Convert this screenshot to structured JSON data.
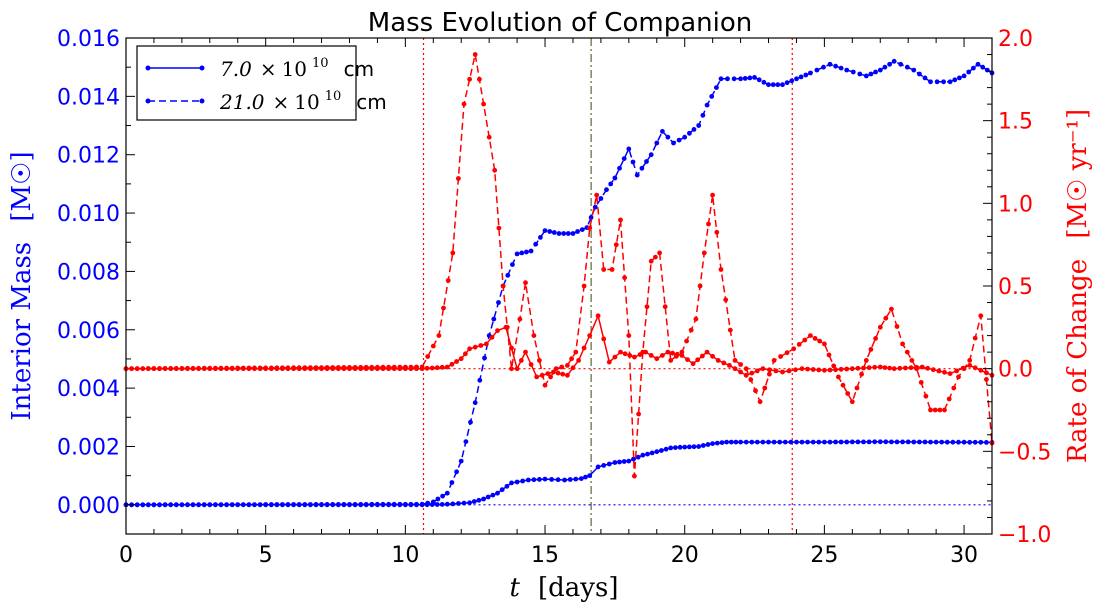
{
  "chart_data": {
    "type": "line",
    "title": "Mass Evolution of Companion",
    "xlabel_var": "t",
    "xlabel_unit": "[days]",
    "ylabel_left": "Interior Mass",
    "ylabel_left_unit": "[M☉]",
    "ylabel_right": "Rate of Change",
    "ylabel_right_unit": "[M☉ yr⁻¹]",
    "xlim": [
      0,
      31
    ],
    "ylim_left": [
      -0.001,
      0.016
    ],
    "ylim_right": [
      -1.0,
      2.0
    ],
    "xticks": [
      "0",
      "5",
      "10",
      "15",
      "20",
      "25",
      "30"
    ],
    "yticks_left": [
      "0.000",
      "0.002",
      "0.004",
      "0.006",
      "0.008",
      "0.010",
      "0.012",
      "0.014",
      "0.016"
    ],
    "yticks_right": [
      "−1.0",
      "−0.5",
      "0.0",
      "0.5",
      "1.0",
      "1.5",
      "2.0"
    ],
    "legend_position": "top-left",
    "legend": [
      {
        "num": "7.0",
        "exp": "10",
        "unit": "cm",
        "style": "solid"
      },
      {
        "num": "21.0",
        "exp": "10",
        "unit": "cm",
        "style": "dashed"
      }
    ],
    "vertical_lines": [
      {
        "x": 10.65,
        "color": "#ff0000",
        "style": "dotted"
      },
      {
        "x": 16.65,
        "color": "#556b2f",
        "style": "dashdot"
      },
      {
        "x": 23.85,
        "color": "#ff0000",
        "style": "dotted"
      }
    ],
    "horizontal_lines": [
      {
        "axis": "left",
        "y": 0.0,
        "color": "#0000ff",
        "style": "dotted",
        "x_start": 10.65
      },
      {
        "axis": "right",
        "y": 0.0,
        "color": "#ff0000",
        "style": "dotted",
        "x_start": 10.65
      }
    ],
    "colors": {
      "mass": "#0000ff",
      "rate": "#ff0000"
    },
    "series": [
      {
        "name": "7.0 ×10^10 cm",
        "axis": "left",
        "color": "#0000ff",
        "style": "solid",
        "points": [
          [
            0,
            0
          ],
          [
            10.6,
            0
          ],
          [
            11.5,
            2e-05
          ],
          [
            12.3,
            7e-05
          ],
          [
            12.8,
            0.0002
          ],
          [
            13.3,
            0.0004
          ],
          [
            13.8,
            0.00075
          ],
          [
            14.4,
            0.00085
          ],
          [
            15,
            0.00088
          ],
          [
            15.7,
            0.00085
          ],
          [
            16.3,
            0.0009
          ],
          [
            16.6,
            0.001
          ],
          [
            16.9,
            0.0013
          ],
          [
            17.5,
            0.00145
          ],
          [
            18,
            0.0015
          ],
          [
            18.5,
            0.0017
          ],
          [
            19,
            0.00182
          ],
          [
            19.5,
            0.00195
          ],
          [
            20,
            0.00198
          ],
          [
            20.5,
            0.002
          ],
          [
            21,
            0.0021
          ],
          [
            21.5,
            0.00215
          ],
          [
            22,
            0.00215
          ],
          [
            23,
            0.00215
          ],
          [
            25,
            0.00215
          ],
          [
            27,
            0.00216
          ],
          [
            29,
            0.00215
          ],
          [
            31,
            0.00214
          ]
        ]
      },
      {
        "name": "21.0 ×10^10 cm",
        "axis": "left",
        "color": "#0000ff",
        "style": "dashed",
        "points": [
          [
            0,
            0
          ],
          [
            10.6,
            2e-05
          ],
          [
            11,
            0.0001
          ],
          [
            11.5,
            0.0004
          ],
          [
            12,
            0.0015
          ],
          [
            12.5,
            0.0035
          ],
          [
            13,
            0.0058
          ],
          [
            13.5,
            0.0075
          ],
          [
            14,
            0.0086
          ],
          [
            14.5,
            0.0087
          ],
          [
            15,
            0.0094
          ],
          [
            15.5,
            0.0093
          ],
          [
            16,
            0.0093
          ],
          [
            16.5,
            0.0095
          ],
          [
            16.8,
            0.0102
          ],
          [
            17.2,
            0.0108
          ],
          [
            17.5,
            0.0112
          ],
          [
            18,
            0.0122
          ],
          [
            18.3,
            0.0113
          ],
          [
            18.8,
            0.012
          ],
          [
            19.2,
            0.0128
          ],
          [
            19.6,
            0.0124
          ],
          [
            20,
            0.0126
          ],
          [
            20.5,
            0.013
          ],
          [
            20.8,
            0.0137
          ],
          [
            21.3,
            0.0146
          ],
          [
            22,
            0.0146
          ],
          [
            22.5,
            0.01465
          ],
          [
            23,
            0.0144
          ],
          [
            23.5,
            0.0144
          ],
          [
            24,
            0.0146
          ],
          [
            24.5,
            0.0148
          ],
          [
            25.2,
            0.0151
          ],
          [
            25.8,
            0.0149
          ],
          [
            26.5,
            0.0147
          ],
          [
            27,
            0.0149
          ],
          [
            27.5,
            0.0152
          ],
          [
            28.2,
            0.0149
          ],
          [
            28.8,
            0.0145
          ],
          [
            29.5,
            0.0145
          ],
          [
            30,
            0.0147
          ],
          [
            30.5,
            0.0151
          ],
          [
            31,
            0.0148
          ]
        ]
      },
      {
        "name": "7.0 ×10^10 cm rate",
        "axis": "right",
        "color": "#ff0000",
        "style": "solid",
        "points": [
          [
            0,
            0
          ],
          [
            10.6,
            0
          ],
          [
            11.5,
            0.01
          ],
          [
            12,
            0.06
          ],
          [
            12.3,
            0.12
          ],
          [
            12.9,
            0.15
          ],
          [
            13.3,
            0.23
          ],
          [
            13.6,
            0.25
          ],
          [
            14,
            0.0
          ],
          [
            14.3,
            0.1
          ],
          [
            14.7,
            -0.05
          ],
          [
            15.3,
            -0.02
          ],
          [
            15.8,
            -0.04
          ],
          [
            16.2,
            0.05
          ],
          [
            16.6,
            0.2
          ],
          [
            16.9,
            0.32
          ],
          [
            17.3,
            0.04
          ],
          [
            17.7,
            0.1
          ],
          [
            18.2,
            0.07
          ],
          [
            18.6,
            0.1
          ],
          [
            19,
            0.06
          ],
          [
            19.4,
            0.1
          ],
          [
            19.9,
            0.08
          ],
          [
            20.3,
            0.03
          ],
          [
            20.8,
            0.1
          ],
          [
            21.2,
            0.05
          ],
          [
            21.6,
            0.02
          ],
          [
            22.2,
            -0.04
          ],
          [
            22.8,
            0.0
          ],
          [
            23.5,
            -0.02
          ],
          [
            24.2,
            0.0
          ],
          [
            25,
            -0.01
          ],
          [
            26,
            0.0
          ],
          [
            27,
            0.01
          ],
          [
            27.5,
            0.0
          ],
          [
            28.5,
            0.01
          ],
          [
            29.5,
            -0.03
          ],
          [
            30.2,
            0.02
          ],
          [
            31,
            -0.04
          ]
        ]
      },
      {
        "name": "21.0 ×10^10 cm rate",
        "axis": "right",
        "color": "#ff0000",
        "style": "dashed",
        "points": [
          [
            0,
            0
          ],
          [
            10.6,
            0.01
          ],
          [
            11.2,
            0.2
          ],
          [
            11.7,
            0.7
          ],
          [
            12.1,
            1.6
          ],
          [
            12.5,
            1.9
          ],
          [
            12.8,
            1.6
          ],
          [
            13.2,
            1.2
          ],
          [
            13.5,
            0.5
          ],
          [
            13.8,
            0.0
          ],
          [
            14.1,
            0.3
          ],
          [
            14.3,
            0.52
          ],
          [
            14.6,
            0.2
          ],
          [
            15,
            -0.1
          ],
          [
            15.4,
            0.0
          ],
          [
            15.8,
            0.02
          ],
          [
            16.1,
            0.1
          ],
          [
            16.4,
            0.5
          ],
          [
            16.6,
            0.85
          ],
          [
            16.85,
            1.05
          ],
          [
            17.1,
            0.6
          ],
          [
            17.4,
            0.6
          ],
          [
            17.7,
            0.9
          ],
          [
            18,
            0.2
          ],
          [
            18.2,
            -0.65
          ],
          [
            18.5,
            0.1
          ],
          [
            18.8,
            0.65
          ],
          [
            19.1,
            0.7
          ],
          [
            19.5,
            0.05
          ],
          [
            19.9,
            0.1
          ],
          [
            20.4,
            0.3
          ],
          [
            20.7,
            0.7
          ],
          [
            21,
            1.05
          ],
          [
            21.3,
            0.6
          ],
          [
            21.8,
            0.05
          ],
          [
            22.2,
            0.0
          ],
          [
            22.7,
            -0.2
          ],
          [
            23.2,
            0.05
          ],
          [
            23.9,
            0.12
          ],
          [
            24.5,
            0.2
          ],
          [
            25,
            0.15
          ],
          [
            25.5,
            -0.05
          ],
          [
            26,
            -0.2
          ],
          [
            26.5,
            0.05
          ],
          [
            27,
            0.25
          ],
          [
            27.4,
            0.36
          ],
          [
            27.8,
            0.15
          ],
          [
            28.3,
            0.0
          ],
          [
            28.8,
            -0.25
          ],
          [
            29.3,
            -0.25
          ],
          [
            29.8,
            -0.05
          ],
          [
            30.2,
            0.05
          ],
          [
            30.6,
            0.32
          ],
          [
            31,
            -0.45
          ]
        ]
      }
    ]
  }
}
